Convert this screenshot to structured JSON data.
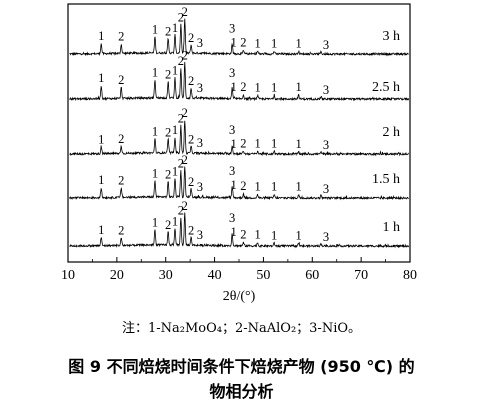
{
  "chart_data": {
    "type": "line",
    "xlabel": "2θ/(°)",
    "xlim": [
      10,
      80
    ],
    "xticks": [
      10,
      20,
      30,
      40,
      50,
      60,
      70,
      80
    ],
    "yticks_shown": false,
    "series": [
      {
        "name": "3 h",
        "peaks": [
          [
            16.8,
            0.18
          ],
          [
            20.9,
            0.17
          ],
          [
            27.8,
            0.3
          ],
          [
            30.5,
            0.26
          ],
          [
            31.9,
            0.33
          ],
          [
            33.1,
            0.52
          ],
          [
            33.9,
            0.62
          ],
          [
            35.2,
            0.15
          ],
          [
            43.6,
            0.17
          ],
          [
            45.9,
            0.06
          ],
          [
            48.8,
            0.05
          ],
          [
            52.2,
            0.05
          ],
          [
            57.2,
            0.05
          ],
          [
            61.8,
            0.04
          ]
        ]
      },
      {
        "name": "2.5 h",
        "peaks": [
          [
            16.8,
            0.24
          ],
          [
            20.9,
            0.2
          ],
          [
            27.8,
            0.34
          ],
          [
            30.5,
            0.3
          ],
          [
            31.9,
            0.37
          ],
          [
            33.1,
            0.55
          ],
          [
            33.9,
            0.65
          ],
          [
            35.2,
            0.18
          ],
          [
            43.6,
            0.18
          ],
          [
            45.9,
            0.07
          ],
          [
            48.8,
            0.06
          ],
          [
            52.2,
            0.06
          ],
          [
            57.2,
            0.07
          ],
          [
            61.8,
            0.05
          ]
        ]
      },
      {
        "name": "2 h",
        "peaks": [
          [
            16.8,
            0.12
          ],
          [
            20.9,
            0.13
          ],
          [
            27.8,
            0.26
          ],
          [
            30.5,
            0.25
          ],
          [
            31.9,
            0.29
          ],
          [
            33.1,
            0.5
          ],
          [
            33.9,
            0.6
          ],
          [
            35.2,
            0.12
          ],
          [
            43.6,
            0.15
          ],
          [
            45.9,
            0.05
          ],
          [
            48.8,
            0.05
          ],
          [
            52.2,
            0.05
          ],
          [
            57.2,
            0.04
          ],
          [
            61.8,
            0.04
          ]
        ]
      },
      {
        "name": "1.5 h",
        "peaks": [
          [
            16.8,
            0.18
          ],
          [
            20.9,
            0.17
          ],
          [
            27.8,
            0.3
          ],
          [
            30.5,
            0.28
          ],
          [
            31.9,
            0.34
          ],
          [
            33.1,
            0.48
          ],
          [
            33.9,
            0.55
          ],
          [
            35.2,
            0.15
          ],
          [
            43.6,
            0.2
          ],
          [
            45.9,
            0.07
          ],
          [
            48.8,
            0.06
          ],
          [
            52.2,
            0.06
          ],
          [
            57.2,
            0.06
          ],
          [
            61.8,
            0.05
          ]
        ]
      },
      {
        "name": "1 h",
        "peaks": [
          [
            16.8,
            0.15
          ],
          [
            20.9,
            0.14
          ],
          [
            27.8,
            0.28
          ],
          [
            30.5,
            0.24
          ],
          [
            31.9,
            0.3
          ],
          [
            33.1,
            0.5
          ],
          [
            33.9,
            0.58
          ],
          [
            35.2,
            0.14
          ],
          [
            43.6,
            0.22
          ],
          [
            45.9,
            0.06
          ],
          [
            48.8,
            0.06
          ],
          [
            52.2,
            0.05
          ],
          [
            57.2,
            0.05
          ],
          [
            61.8,
            0.04
          ]
        ]
      }
    ],
    "peak_labels": [
      {
        "x": 16.8,
        "label": "1"
      },
      {
        "x": 20.9,
        "label": "2"
      },
      {
        "x": 27.8,
        "label": "1"
      },
      {
        "x": 30.5,
        "label": "2"
      },
      {
        "x": 31.9,
        "label": "1"
      },
      {
        "x": 33.1,
        "label": "2"
      },
      {
        "x": 33.9,
        "label": "2"
      },
      {
        "x": 35.2,
        "label": "2"
      },
      {
        "x": 37.0,
        "label": "3"
      },
      {
        "x": 43.6,
        "label": "3"
      },
      {
        "x": 43.9,
        "label": "1"
      },
      {
        "x": 45.9,
        "label": "2"
      },
      {
        "x": 48.8,
        "label": "1"
      },
      {
        "x": 52.2,
        "label": "1"
      },
      {
        "x": 57.2,
        "label": "1"
      },
      {
        "x": 62.8,
        "label": "3"
      }
    ]
  },
  "note": "注：1-Na₂MoO₄；2-NaAlO₂；3-NiO。",
  "caption": {
    "line1": "图 9   不同焙烧时间条件下焙烧产物 (950 ℃) 的",
    "line2": "物相分析"
  }
}
